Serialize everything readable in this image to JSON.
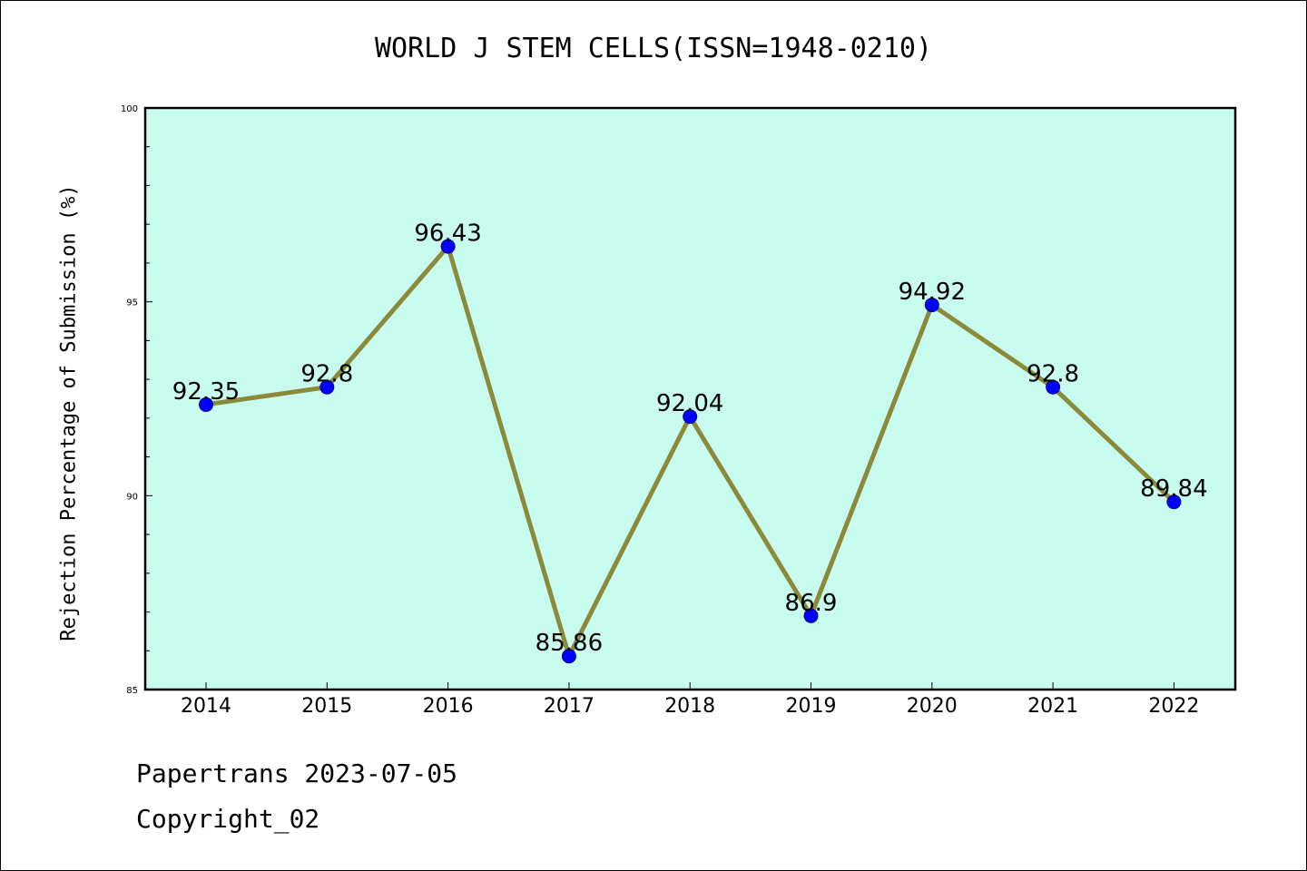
{
  "chart_data": {
    "type": "line",
    "title": "WORLD J STEM CELLS(ISSN=1948-0210)",
    "xlabel": "",
    "ylabel": "Rejection Percentage of Submission (%)",
    "categories": [
      "2014",
      "2015",
      "2016",
      "2017",
      "2018",
      "2019",
      "2020",
      "2021",
      "2022"
    ],
    "values": [
      92.35,
      92.8,
      96.43,
      85.86,
      92.04,
      86.9,
      94.92,
      92.8,
      89.84
    ],
    "data_labels": [
      "92.35",
      "92.8",
      "96.43",
      "85.86",
      "92.04",
      "86.9",
      "94.92",
      "92.8",
      "89.84"
    ],
    "ylim": [
      85,
      100
    ],
    "yticks": [
      "85",
      "90",
      "95",
      "100"
    ],
    "grid": false,
    "colors": {
      "plot_background": "#c8fcee",
      "line": "#8c8a3a",
      "marker": "#0000ff"
    }
  },
  "footer": {
    "line1": "Papertrans 2023-07-05",
    "line2": "Copyright_02"
  }
}
